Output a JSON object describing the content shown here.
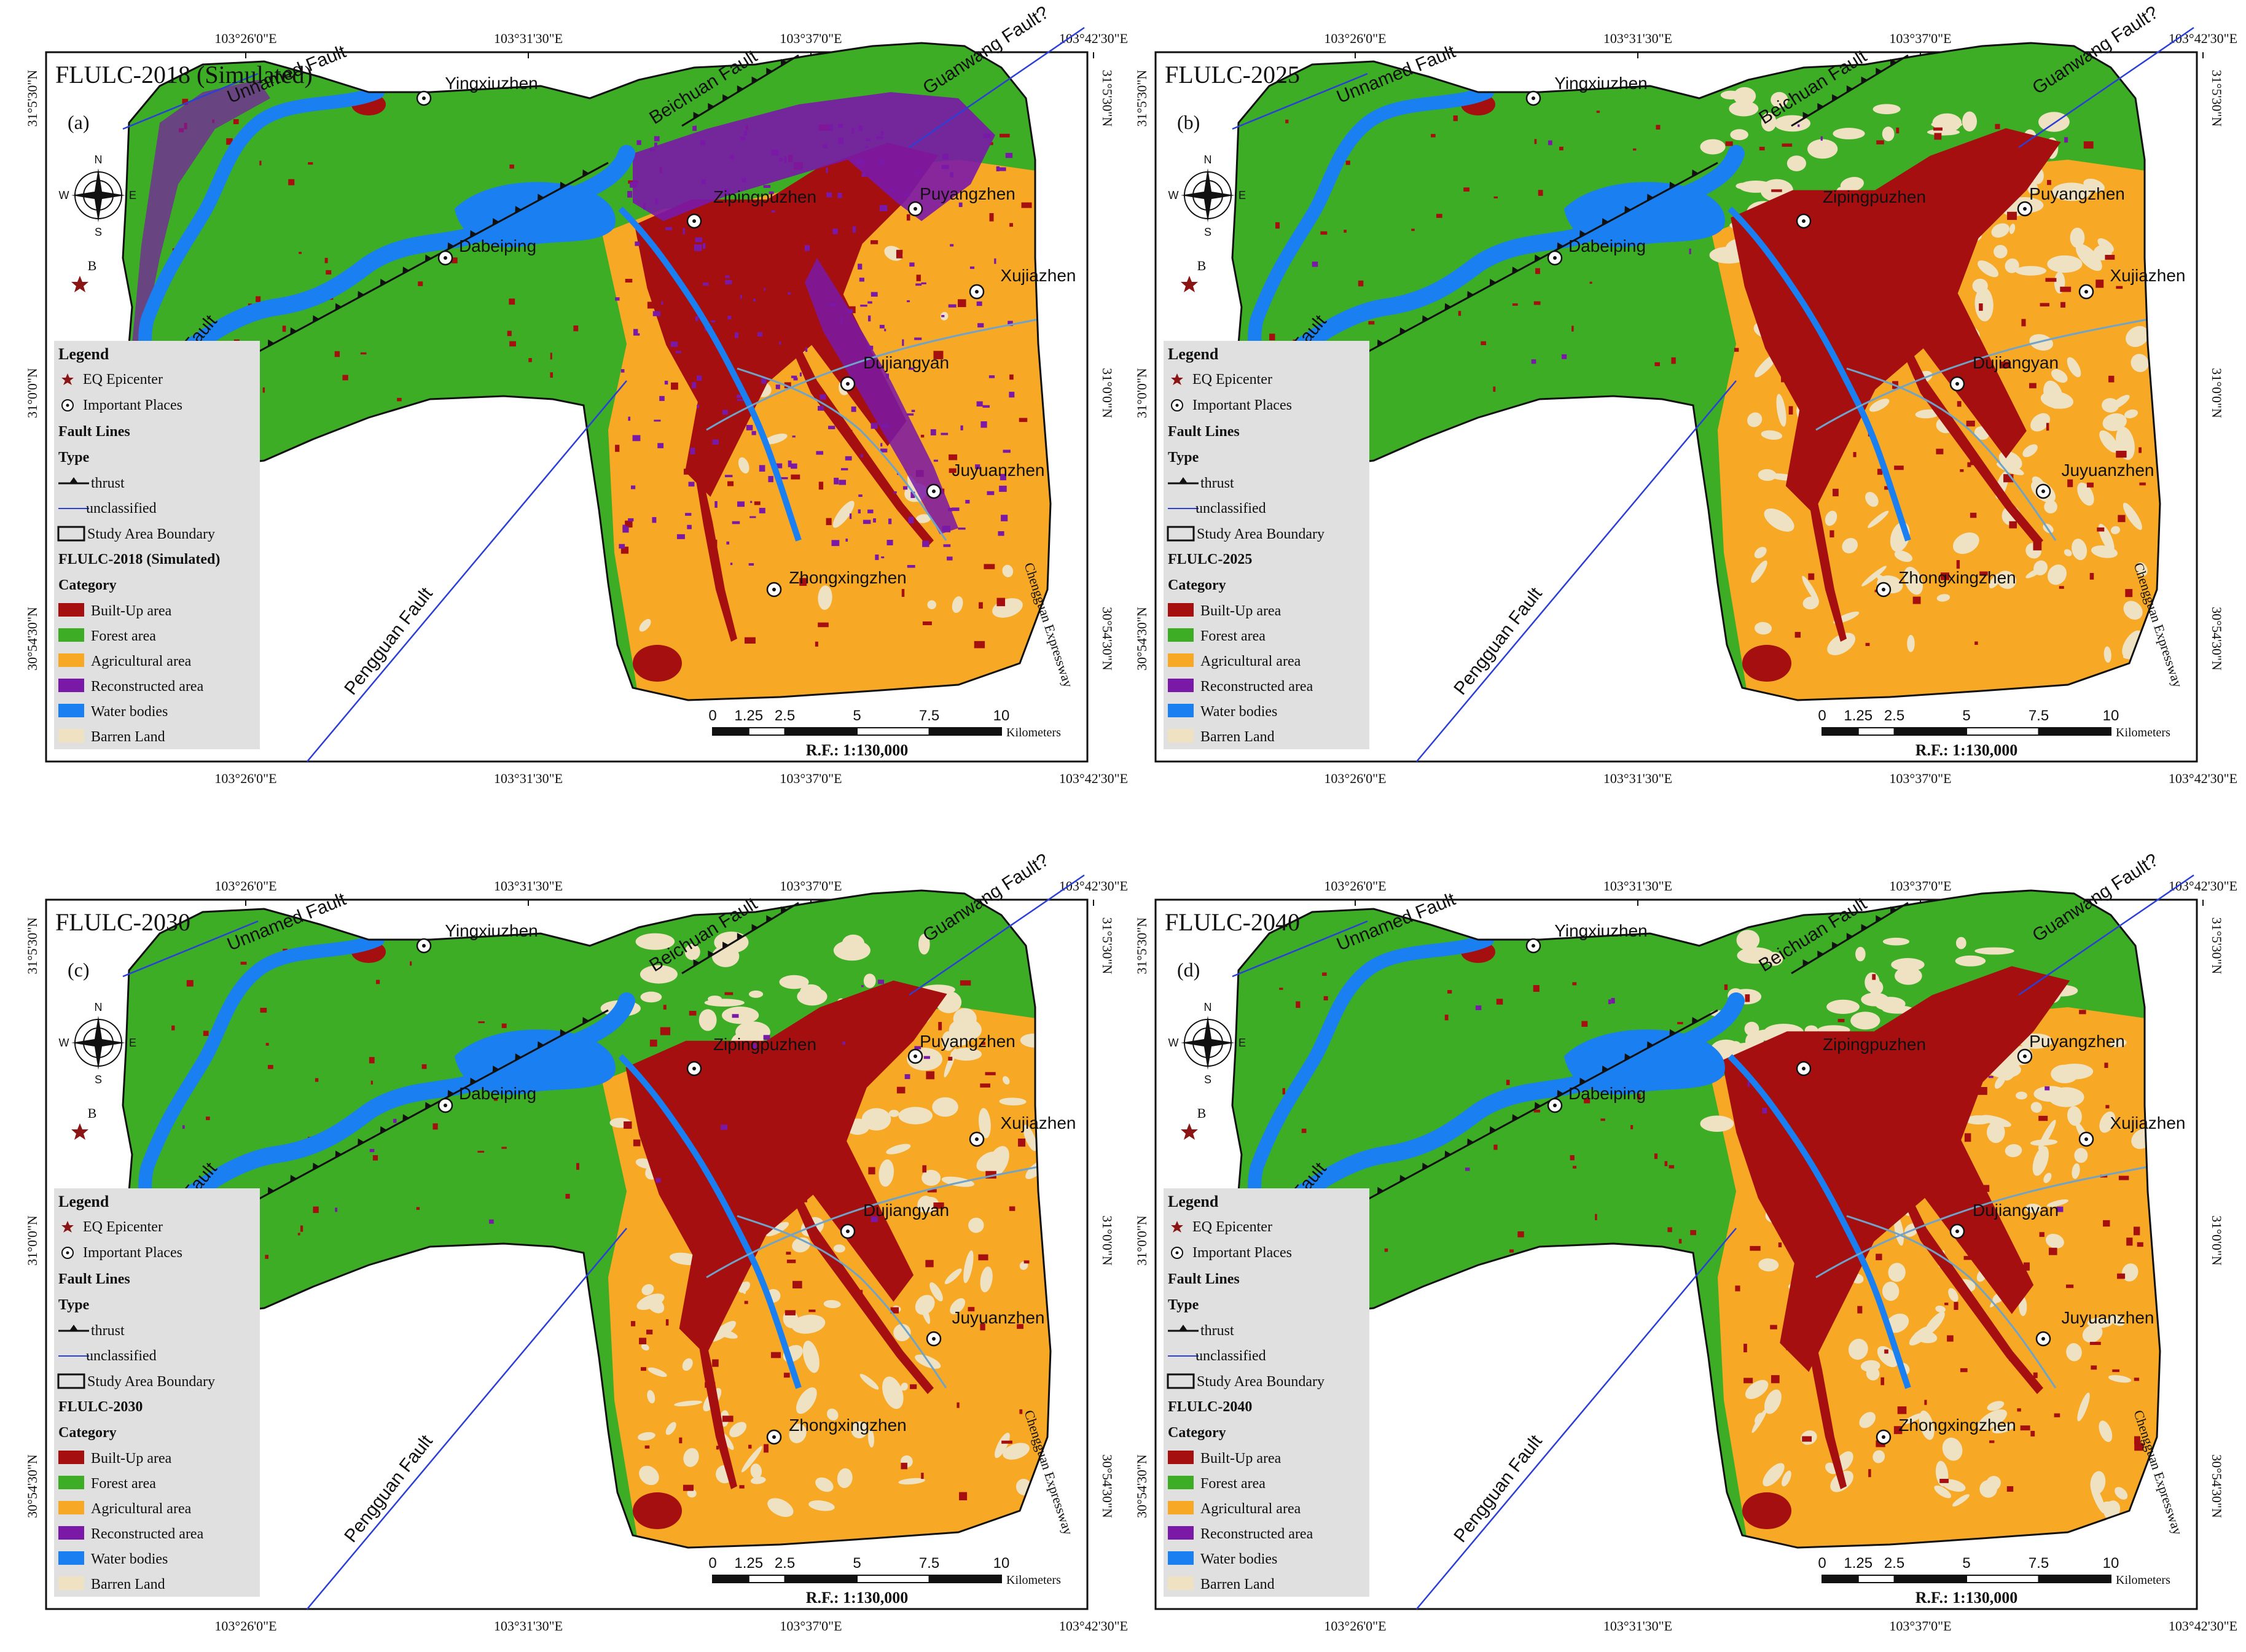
{
  "colors": {
    "builtup": "#a50f0f",
    "forest": "#3cad25",
    "agri": "#f7a825",
    "recon": "#7a18a8",
    "water": "#1a7ff0",
    "barren": "#efe2c2",
    "legend_bg": "#e0e0e0",
    "fault_unclassified": "#2b3fd6",
    "epicenter": "#8b1515"
  },
  "coords": {
    "top": [
      "103°26'0\"E",
      "103°31'30\"E",
      "103°37'0\"E",
      "103°42'30\"E"
    ],
    "bottom": [
      "103°26'0\"E",
      "103°31'30\"E",
      "103°37'0\"E",
      "103°42'30\"E"
    ],
    "left": [
      "31°5'30\"N",
      "31°0'0\"N",
      "30°54'30\"N"
    ],
    "right": [
      "31°5'30\"N",
      "31°0'0\"N",
      "30°54'30\"N"
    ]
  },
  "places": [
    "Yingxiuzhen",
    "Zipingpuzhen",
    "Puyangzhen",
    "Dabeiping",
    "Xujiazhen",
    "Dujiangyan",
    "Juyuanzhen",
    "Zhongxingzhen"
  ],
  "faults": {
    "unnamed": "Unnamed Fault",
    "beichuan_top": "Beichuan Fault",
    "beichuan_left": "Beichuan Fault",
    "guanwang": "Guanwang Fault?",
    "pengguan": "Pengguan Fault"
  },
  "expressway": "Chengguan Expressway",
  "compass": {
    "n": "N",
    "s": "S",
    "e": "E",
    "w": "W"
  },
  "epicenter_label": "B",
  "legend": {
    "title": "Legend",
    "epicenter": "EQ Epicenter",
    "places": "Important Places",
    "fault_lines": "Fault Lines",
    "type": "Type",
    "thrust": "thrust",
    "unclassified": "unclassified",
    "boundary": "Study Area Boundary",
    "category": "Category",
    "classes": [
      "Built-Up area",
      "Forest area",
      "Agricultural area",
      "Reconstructed area",
      "Water bodies",
      "Barren Land"
    ]
  },
  "scale": {
    "ticks": [
      "0",
      "1.25",
      "2.5",
      "5",
      "7.5",
      "10"
    ],
    "unit": "Kilometers",
    "rf": "R.F.: 1:130,000"
  },
  "panels": [
    {
      "title": "FLULC-2018 (Simulated)",
      "letter": "(a)",
      "layer": "FLULC-2018 (Simulated)",
      "built_up_level": 0.55,
      "reconstructed_level": 0.9
    },
    {
      "title": "FLULC-2025",
      "letter": "(b)",
      "layer": "FLULC-2025",
      "built_up_level": 0.7,
      "reconstructed_level": 0.05
    },
    {
      "title": "FLULC-2030",
      "letter": "(c)",
      "layer": "FLULC-2030",
      "built_up_level": 0.65,
      "reconstructed_level": 0.2
    },
    {
      "title": "FLULC-2040",
      "letter": "(d)",
      "layer": "FLULC-2040",
      "built_up_level": 0.8,
      "reconstructed_level": 0.05
    }
  ]
}
